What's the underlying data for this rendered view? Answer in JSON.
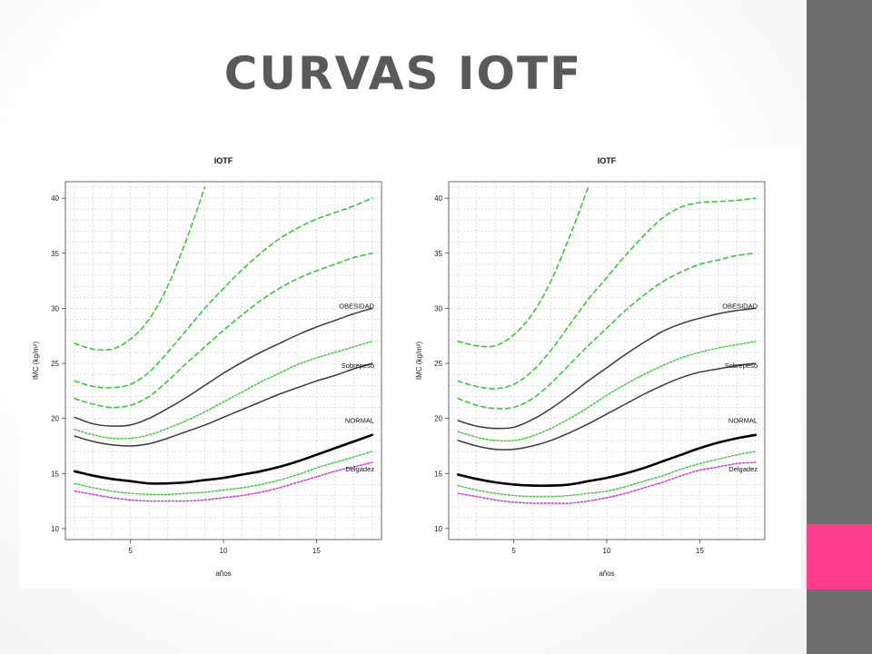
{
  "slide": {
    "title": "CURVAS IOTF",
    "accent_color": "#ff3d8d",
    "sidebar_color": "#6e6e6e"
  },
  "chart_data": [
    {
      "type": "line",
      "title": "IOTF",
      "xlabel": "años",
      "ylabel": "IMC (kg/m²)",
      "xlim": [
        1.5,
        18.5
      ],
      "ylim": [
        9,
        41.5
      ],
      "xticks": [
        5,
        10,
        15
      ],
      "yticks": [
        10,
        15,
        20,
        25,
        30,
        35,
        40
      ],
      "grid": true,
      "annotations": [
        "OBESIDAD",
        "Sobrepeso",
        "NORMAL",
        "Delgadez"
      ],
      "series": [
        {
          "style": "green-dashed",
          "x": [
            2,
            3,
            4,
            5,
            6,
            7,
            8,
            9
          ],
          "y": [
            26.8,
            26.3,
            26.3,
            27.2,
            29.0,
            32.0,
            36.2,
            41.0
          ]
        },
        {
          "style": "green-dashed",
          "x": [
            2,
            3,
            4,
            5,
            6,
            7,
            8,
            9,
            10,
            11,
            12,
            13,
            14,
            15,
            16,
            17,
            18
          ],
          "y": [
            23.4,
            22.9,
            22.8,
            23.1,
            24.2,
            26.0,
            28.0,
            30.0,
            31.8,
            33.5,
            35.0,
            36.3,
            37.3,
            38.1,
            38.7,
            39.3,
            40.0
          ]
        },
        {
          "style": "green-dashed",
          "x": [
            2,
            3,
            4,
            5,
            6,
            7,
            8,
            9,
            10,
            11,
            12,
            13,
            14,
            15,
            16,
            17,
            18
          ],
          "y": [
            21.8,
            21.3,
            21.0,
            21.2,
            22.0,
            23.4,
            25.0,
            26.5,
            28.0,
            29.4,
            30.7,
            31.8,
            32.7,
            33.4,
            34.0,
            34.6,
            35.0
          ]
        },
        {
          "style": "gray-solid",
          "x": [
            2,
            3,
            4,
            5,
            6,
            7,
            8,
            9,
            10,
            11,
            12,
            13,
            14,
            15,
            16,
            17,
            18
          ],
          "y": [
            20.1,
            19.5,
            19.3,
            19.4,
            20.0,
            20.9,
            21.9,
            23.0,
            24.1,
            25.1,
            26.0,
            26.8,
            27.6,
            28.3,
            28.9,
            29.5,
            30.0
          ]
        },
        {
          "style": "green-dotted",
          "x": [
            2,
            3,
            4,
            5,
            6,
            7,
            8,
            9,
            10,
            11,
            12,
            13,
            14,
            15,
            16,
            17,
            18
          ],
          "y": [
            19.0,
            18.5,
            18.2,
            18.2,
            18.5,
            19.1,
            19.8,
            20.6,
            21.5,
            22.4,
            23.3,
            24.1,
            24.9,
            25.5,
            26.0,
            26.5,
            27.0
          ]
        },
        {
          "style": "gray-solid",
          "x": [
            2,
            3,
            4,
            5,
            6,
            7,
            8,
            9,
            10,
            11,
            12,
            13,
            14,
            15,
            16,
            17,
            18
          ],
          "y": [
            18.4,
            17.9,
            17.6,
            17.5,
            17.7,
            18.2,
            18.8,
            19.4,
            20.1,
            20.8,
            21.5,
            22.2,
            22.8,
            23.4,
            23.9,
            24.5,
            25.0
          ]
        },
        {
          "style": "black-solid",
          "x": [
            2,
            3,
            4,
            5,
            6,
            7,
            8,
            9,
            10,
            11,
            12,
            13,
            14,
            15,
            16,
            17,
            18
          ],
          "y": [
            15.2,
            14.8,
            14.5,
            14.3,
            14.1,
            14.1,
            14.2,
            14.4,
            14.6,
            14.9,
            15.2,
            15.6,
            16.1,
            16.7,
            17.3,
            17.9,
            18.5
          ]
        },
        {
          "style": "green-dotted",
          "x": [
            2,
            3,
            4,
            5,
            6,
            7,
            8,
            9,
            10,
            11,
            12,
            13,
            14,
            15,
            16,
            17,
            18
          ],
          "y": [
            14.1,
            13.7,
            13.4,
            13.2,
            13.1,
            13.1,
            13.2,
            13.3,
            13.5,
            13.7,
            14.0,
            14.4,
            14.9,
            15.5,
            16.0,
            16.5,
            17.0
          ]
        },
        {
          "style": "magenta-dotted",
          "x": [
            2,
            3,
            4,
            5,
            6,
            7,
            8,
            9,
            10,
            11,
            12,
            13,
            14,
            15,
            16,
            17,
            18
          ],
          "y": [
            13.4,
            13.1,
            12.8,
            12.6,
            12.5,
            12.5,
            12.5,
            12.6,
            12.8,
            13.0,
            13.3,
            13.7,
            14.2,
            14.7,
            15.2,
            15.6,
            16.0
          ]
        }
      ]
    },
    {
      "type": "line",
      "title": "IOTF",
      "xlabel": "años",
      "ylabel": "IMC (kg/m²)",
      "xlim": [
        1.5,
        18.5
      ],
      "ylim": [
        9,
        41.5
      ],
      "xticks": [
        5,
        10,
        15
      ],
      "yticks": [
        10,
        15,
        20,
        25,
        30,
        35,
        40
      ],
      "grid": true,
      "annotations": [
        "OBESIDAD",
        "Sobrepeso",
        "NORMAL",
        "Delgadez"
      ],
      "series": [
        {
          "style": "green-dashed",
          "x": [
            2,
            3,
            4,
            5,
            6,
            7,
            8,
            9
          ],
          "y": [
            27.0,
            26.6,
            26.6,
            27.6,
            29.5,
            32.5,
            36.5,
            41.0
          ]
        },
        {
          "style": "green-dashed",
          "x": [
            2,
            3,
            4,
            5,
            6,
            7,
            8,
            9,
            10,
            11,
            12,
            13,
            14,
            15,
            16,
            17,
            18
          ],
          "y": [
            23.4,
            22.9,
            22.7,
            23.1,
            24.3,
            26.2,
            28.5,
            30.8,
            32.8,
            34.8,
            36.6,
            38.2,
            39.2,
            39.6,
            39.7,
            39.8,
            40.0
          ]
        },
        {
          "style": "green-dashed",
          "x": [
            2,
            3,
            4,
            5,
            6,
            7,
            8,
            9,
            10,
            11,
            12,
            13,
            14,
            15,
            16,
            17,
            18
          ],
          "y": [
            21.8,
            21.2,
            20.9,
            21.0,
            21.8,
            23.2,
            24.9,
            26.6,
            28.2,
            29.8,
            31.2,
            32.4,
            33.3,
            34.0,
            34.4,
            34.8,
            35.0
          ]
        },
        {
          "style": "gray-solid",
          "x": [
            2,
            3,
            4,
            5,
            6,
            7,
            8,
            9,
            10,
            11,
            12,
            13,
            14,
            15,
            16,
            17,
            18
          ],
          "y": [
            19.8,
            19.3,
            19.1,
            19.2,
            19.9,
            20.9,
            22.1,
            23.4,
            24.6,
            25.8,
            26.9,
            27.9,
            28.6,
            29.1,
            29.5,
            29.8,
            30.0
          ]
        },
        {
          "style": "green-dotted",
          "x": [
            2,
            3,
            4,
            5,
            6,
            7,
            8,
            9,
            10,
            11,
            12,
            13,
            14,
            15,
            16,
            17,
            18
          ],
          "y": [
            18.8,
            18.3,
            18.0,
            18.0,
            18.4,
            19.1,
            20.0,
            21.0,
            22.1,
            23.1,
            24.0,
            24.8,
            25.5,
            26.0,
            26.4,
            26.7,
            27.0
          ]
        },
        {
          "style": "gray-solid",
          "x": [
            2,
            3,
            4,
            5,
            6,
            7,
            8,
            9,
            10,
            11,
            12,
            13,
            14,
            15,
            16,
            17,
            18
          ],
          "y": [
            18.0,
            17.5,
            17.2,
            17.2,
            17.5,
            18.0,
            18.7,
            19.5,
            20.4,
            21.3,
            22.2,
            23.0,
            23.7,
            24.2,
            24.5,
            24.8,
            25.0
          ]
        },
        {
          "style": "black-solid",
          "x": [
            2,
            3,
            4,
            5,
            6,
            7,
            8,
            9,
            10,
            11,
            12,
            13,
            14,
            15,
            16,
            17,
            18
          ],
          "y": [
            14.9,
            14.5,
            14.2,
            14.0,
            13.9,
            13.9,
            14.0,
            14.3,
            14.6,
            15.0,
            15.5,
            16.1,
            16.7,
            17.3,
            17.8,
            18.2,
            18.5
          ]
        },
        {
          "style": "green-dotted",
          "x": [
            2,
            3,
            4,
            5,
            6,
            7,
            8,
            9,
            10,
            11,
            12,
            13,
            14,
            15,
            16,
            17,
            18
          ],
          "y": [
            13.9,
            13.5,
            13.2,
            13.0,
            12.9,
            12.9,
            13.0,
            13.2,
            13.4,
            13.8,
            14.3,
            14.8,
            15.4,
            15.9,
            16.3,
            16.7,
            17.0
          ]
        },
        {
          "style": "magenta-dotted",
          "x": [
            2,
            3,
            4,
            5,
            6,
            7,
            8,
            9,
            10,
            11,
            12,
            13,
            14,
            15,
            16,
            17,
            18
          ],
          "y": [
            13.2,
            12.9,
            12.6,
            12.4,
            12.3,
            12.3,
            12.3,
            12.5,
            12.8,
            13.2,
            13.7,
            14.2,
            14.8,
            15.3,
            15.6,
            15.9,
            16.0
          ]
        }
      ]
    }
  ]
}
